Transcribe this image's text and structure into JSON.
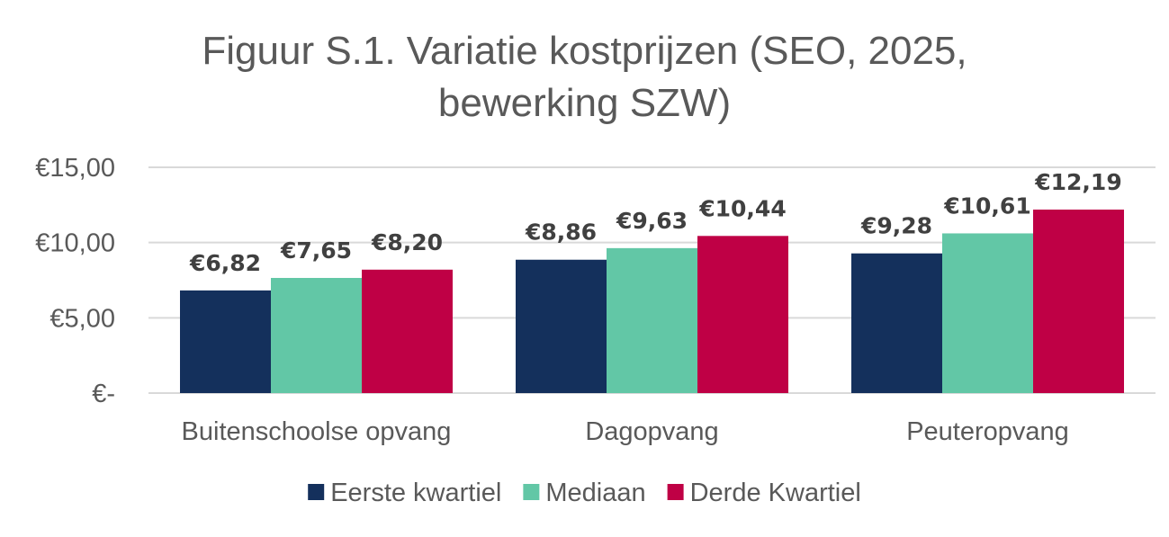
{
  "chart_data": {
    "type": "bar",
    "title_line1": "Figuur S.1. Variatie kostprijzen (SEO, 2025,",
    "title_line2": "bewerking SZW)",
    "categories": [
      "Buitenschoolse opvang",
      "Dagopvang",
      "Peuteropvang"
    ],
    "series": [
      {
        "name": "Eerste kwartiel",
        "color": "#14305c",
        "values": [
          6.82,
          8.86,
          9.28
        ],
        "labels": [
          "€6,82",
          "€8,86",
          "€9,28"
        ]
      },
      {
        "name": "Mediaan",
        "color": "#62c7a6",
        "values": [
          7.65,
          9.63,
          10.61
        ],
        "labels": [
          "€7,65",
          "€9,63",
          "€10,61"
        ]
      },
      {
        "name": "Derde Kwartiel",
        "color": "#bf0045",
        "values": [
          8.2,
          10.44,
          12.19
        ],
        "labels": [
          "€8,20",
          "€10,44",
          "€12,19"
        ]
      }
    ],
    "y_ticks": [
      {
        "value": 0,
        "label": "€-"
      },
      {
        "value": 5,
        "label": "€5,00"
      },
      {
        "value": 10,
        "label": "€10,00"
      },
      {
        "value": 15,
        "label": "€15,00"
      }
    ],
    "ylim": [
      0,
      15
    ],
    "grid": true,
    "legend_position": "bottom"
  }
}
